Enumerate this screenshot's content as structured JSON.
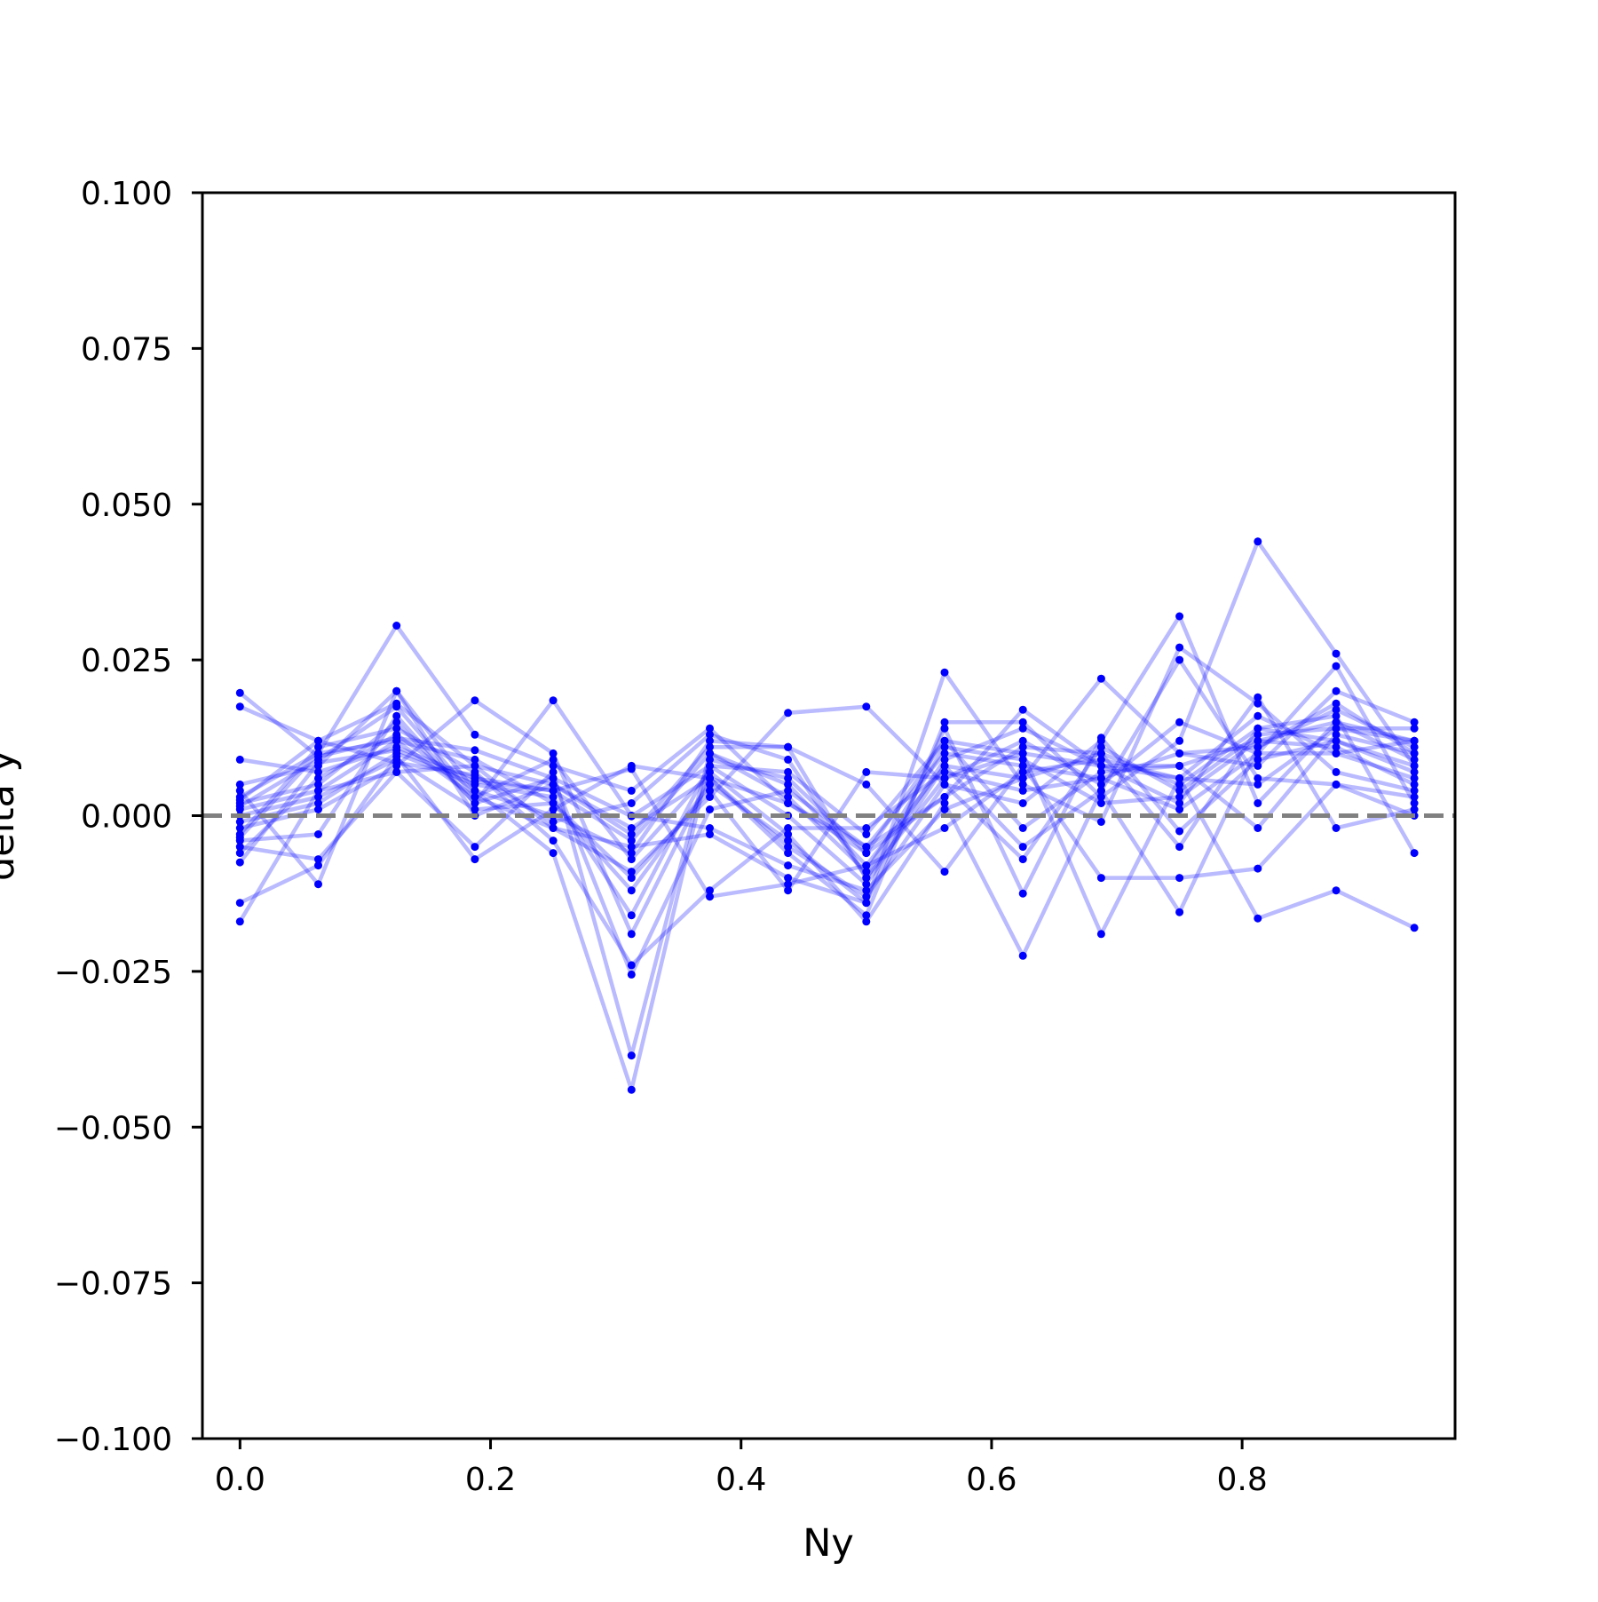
{
  "chart_data": {
    "type": "line",
    "title": "",
    "xlabel": "Ny",
    "ylabel": "delta y",
    "xlim": [
      -0.03,
      0.97
    ],
    "ylim": [
      -0.1,
      0.1
    ],
    "x_ticks": [
      0.0,
      0.2,
      0.4,
      0.6,
      0.8
    ],
    "x_tick_labels": [
      "0.0",
      "0.2",
      "0.4",
      "0.6",
      "0.8"
    ],
    "y_ticks": [
      0.1,
      0.075,
      0.05,
      0.025,
      0.0,
      -0.025,
      -0.05,
      -0.075,
      -0.1
    ],
    "y_tick_labels": [
      "0.100",
      "0.075",
      "0.050",
      "0.025",
      "0.000",
      "−0.025",
      "−0.050",
      "−0.075",
      "−0.100"
    ],
    "grid": false,
    "legend": "none",
    "line_color": "#0000ff",
    "line_opacity": 0.27,
    "marker_color": "#0000ff",
    "reference_line": {
      "y": 0.0,
      "style": "dashed",
      "color": "#808080"
    },
    "x": [
      0.0,
      0.0625,
      0.125,
      0.1875,
      0.25,
      0.3125,
      0.375,
      0.4375,
      0.5,
      0.5625,
      0.625,
      0.6875,
      0.75,
      0.8125,
      0.875,
      0.9375
    ],
    "series": [
      {
        "values": [
          0.0197,
          0.0095,
          0.0125,
          0.0105,
          0.006,
          -0.0001,
          0.008,
          0.007,
          -0.003,
          0.012,
          0.01,
          0.008,
          0.008,
          0.012,
          0.015,
          0.012
        ]
      },
      {
        "values": [
          0.0175,
          0.012,
          0.018,
          0.008,
          0.005,
          -0.002,
          0.006,
          0.002,
          -0.005,
          0.01,
          0.008,
          0.006,
          0.01,
          0.011,
          0.018,
          0.01
        ]
      },
      {
        "values": [
          0.009,
          0.007,
          0.011,
          0.006,
          0.004,
          -0.004,
          0.01,
          0.005,
          -0.008,
          0.008,
          0.006,
          0.01,
          0.005,
          0.014,
          0.012,
          0.008
        ]
      },
      {
        "values": [
          0.005,
          0.008,
          0.02,
          0.004,
          0.0,
          -0.006,
          0.012,
          0.011,
          -0.01,
          0.006,
          0.012,
          0.005,
          0.015,
          0.01,
          0.01,
          0.006
        ]
      },
      {
        "values": [
          0.003,
          0.01,
          0.0305,
          0.013,
          0.008,
          0.004,
          0.014,
          0.002,
          -0.006,
          0.003,
          0.017,
          0.008,
          0.006,
          0.005,
          0.014,
          0.012
        ]
      },
      {
        "values": [
          0.002,
          0.005,
          0.015,
          0.002,
          0.0185,
          0.0,
          -0.002,
          -0.008,
          -0.012,
          0.001,
          0.006,
          0.022,
          0.01,
          0.008,
          0.02,
          0.015
        ]
      },
      {
        "values": [
          0.001,
          0.004,
          0.012,
          0.003,
          -0.002,
          -0.009,
          0.003,
          0.0165,
          0.0175,
          0.005,
          0.002,
          0.012,
          0.032,
          0.002,
          0.015,
          0.009
        ]
      },
      {
        "values": [
          0.0,
          0.003,
          0.009,
          0.001,
          0.002,
          -0.012,
          0.005,
          -0.004,
          -0.014,
          0.023,
          0.005,
          -0.001,
          0.027,
          0.018,
          0.007,
          0.004
        ]
      },
      {
        "values": [
          -0.001,
          0.002,
          0.01,
          0.005,
          0.003,
          -0.016,
          0.008,
          0.0,
          -0.011,
          0.008,
          -0.005,
          0.004,
          0.025,
          0.006,
          0.005,
          0.003
        ]
      },
      {
        "values": [
          -0.002,
          0.001,
          0.008,
          0.0185,
          0.01,
          -0.019,
          0.006,
          -0.006,
          -0.016,
          0.015,
          0.015,
          0.003,
          0.012,
          0.044,
          0.026,
          0.008
        ]
      },
      {
        "values": [
          -0.003,
          0.011,
          0.014,
          0.007,
          -0.004,
          -0.024,
          -0.012,
          -0.002,
          -0.002,
          0.007,
          0.004,
          0.006,
          0.001,
          0.01,
          0.024,
          0.002
        ]
      },
      {
        "values": [
          -0.004,
          -0.003,
          0.016,
          0.002,
          0.006,
          -0.0255,
          0.001,
          0.004,
          -0.005,
          0.003,
          0.011,
          0.01,
          -0.005,
          0.014,
          0.016,
          -0.006
        ]
      },
      {
        "values": [
          -0.005,
          -0.007,
          0.007,
          -0.005,
          0.007,
          -0.0385,
          0.01,
          0.003,
          -0.009,
          0.011,
          0.009,
          0.002,
          0.003,
          0.012,
          0.011,
          0.005
        ]
      },
      {
        "values": [
          -0.006,
          0.006,
          0.013,
          0.004,
          -0.006,
          -0.044,
          0.009,
          0.006,
          -0.006,
          0.012,
          -0.002,
          0.007,
          0.008,
          -0.002,
          0.013,
          0.01
        ]
      },
      {
        "values": [
          -0.0075,
          0.0085,
          0.0105,
          0.0055,
          0.004,
          0.0075,
          -0.013,
          -0.011,
          -0.008,
          -0.002,
          0.007,
          0.009,
          0.006,
          0.016,
          0.01,
          0.012
        ]
      },
      {
        "values": [
          -0.014,
          -0.008,
          0.0095,
          -0.007,
          0.001,
          0.008,
          0.006,
          -0.005,
          -0.013,
          0.005,
          -0.007,
          0.011,
          0.004,
          0.013,
          0.014,
          0.014
        ]
      },
      {
        "values": [
          -0.017,
          0.004,
          0.007,
          0.008,
          -0.002,
          -0.005,
          -0.003,
          -0.01,
          -0.014,
          0.014,
          -0.0125,
          0.0125,
          -0.0025,
          0.009,
          0.012,
          0.007
        ]
      },
      {
        "values": [
          0.004,
          -0.011,
          0.02,
          0.0,
          0.005,
          -0.003,
          0.011,
          0.011,
          0.005,
          -0.009,
          0.008,
          -0.01,
          -0.01,
          -0.0085,
          0.005,
          0.0
        ]
      },
      {
        "values": [
          0.0015,
          0.009,
          0.0175,
          0.003,
          0.009,
          -0.007,
          0.007,
          -0.003,
          -0.017,
          0.002,
          -0.0225,
          0.004,
          -0.0155,
          0.011,
          0.017,
          0.011
        ]
      },
      {
        "values": [
          -0.0035,
          0.01,
          0.012,
          0.009,
          0.002,
          -0.01,
          0.004,
          -0.012,
          0.007,
          0.006,
          0.01,
          -0.019,
          0.006,
          -0.0165,
          -0.012,
          -0.018
        ]
      },
      {
        "values": [
          0.0025,
          0.012,
          0.0085,
          0.0065,
          -0.001,
          0.002,
          0.013,
          0.009,
          -0.01,
          0.009,
          0.014,
          0.008,
          0.002,
          0.019,
          -0.002,
          0.001
        ]
      }
    ]
  }
}
